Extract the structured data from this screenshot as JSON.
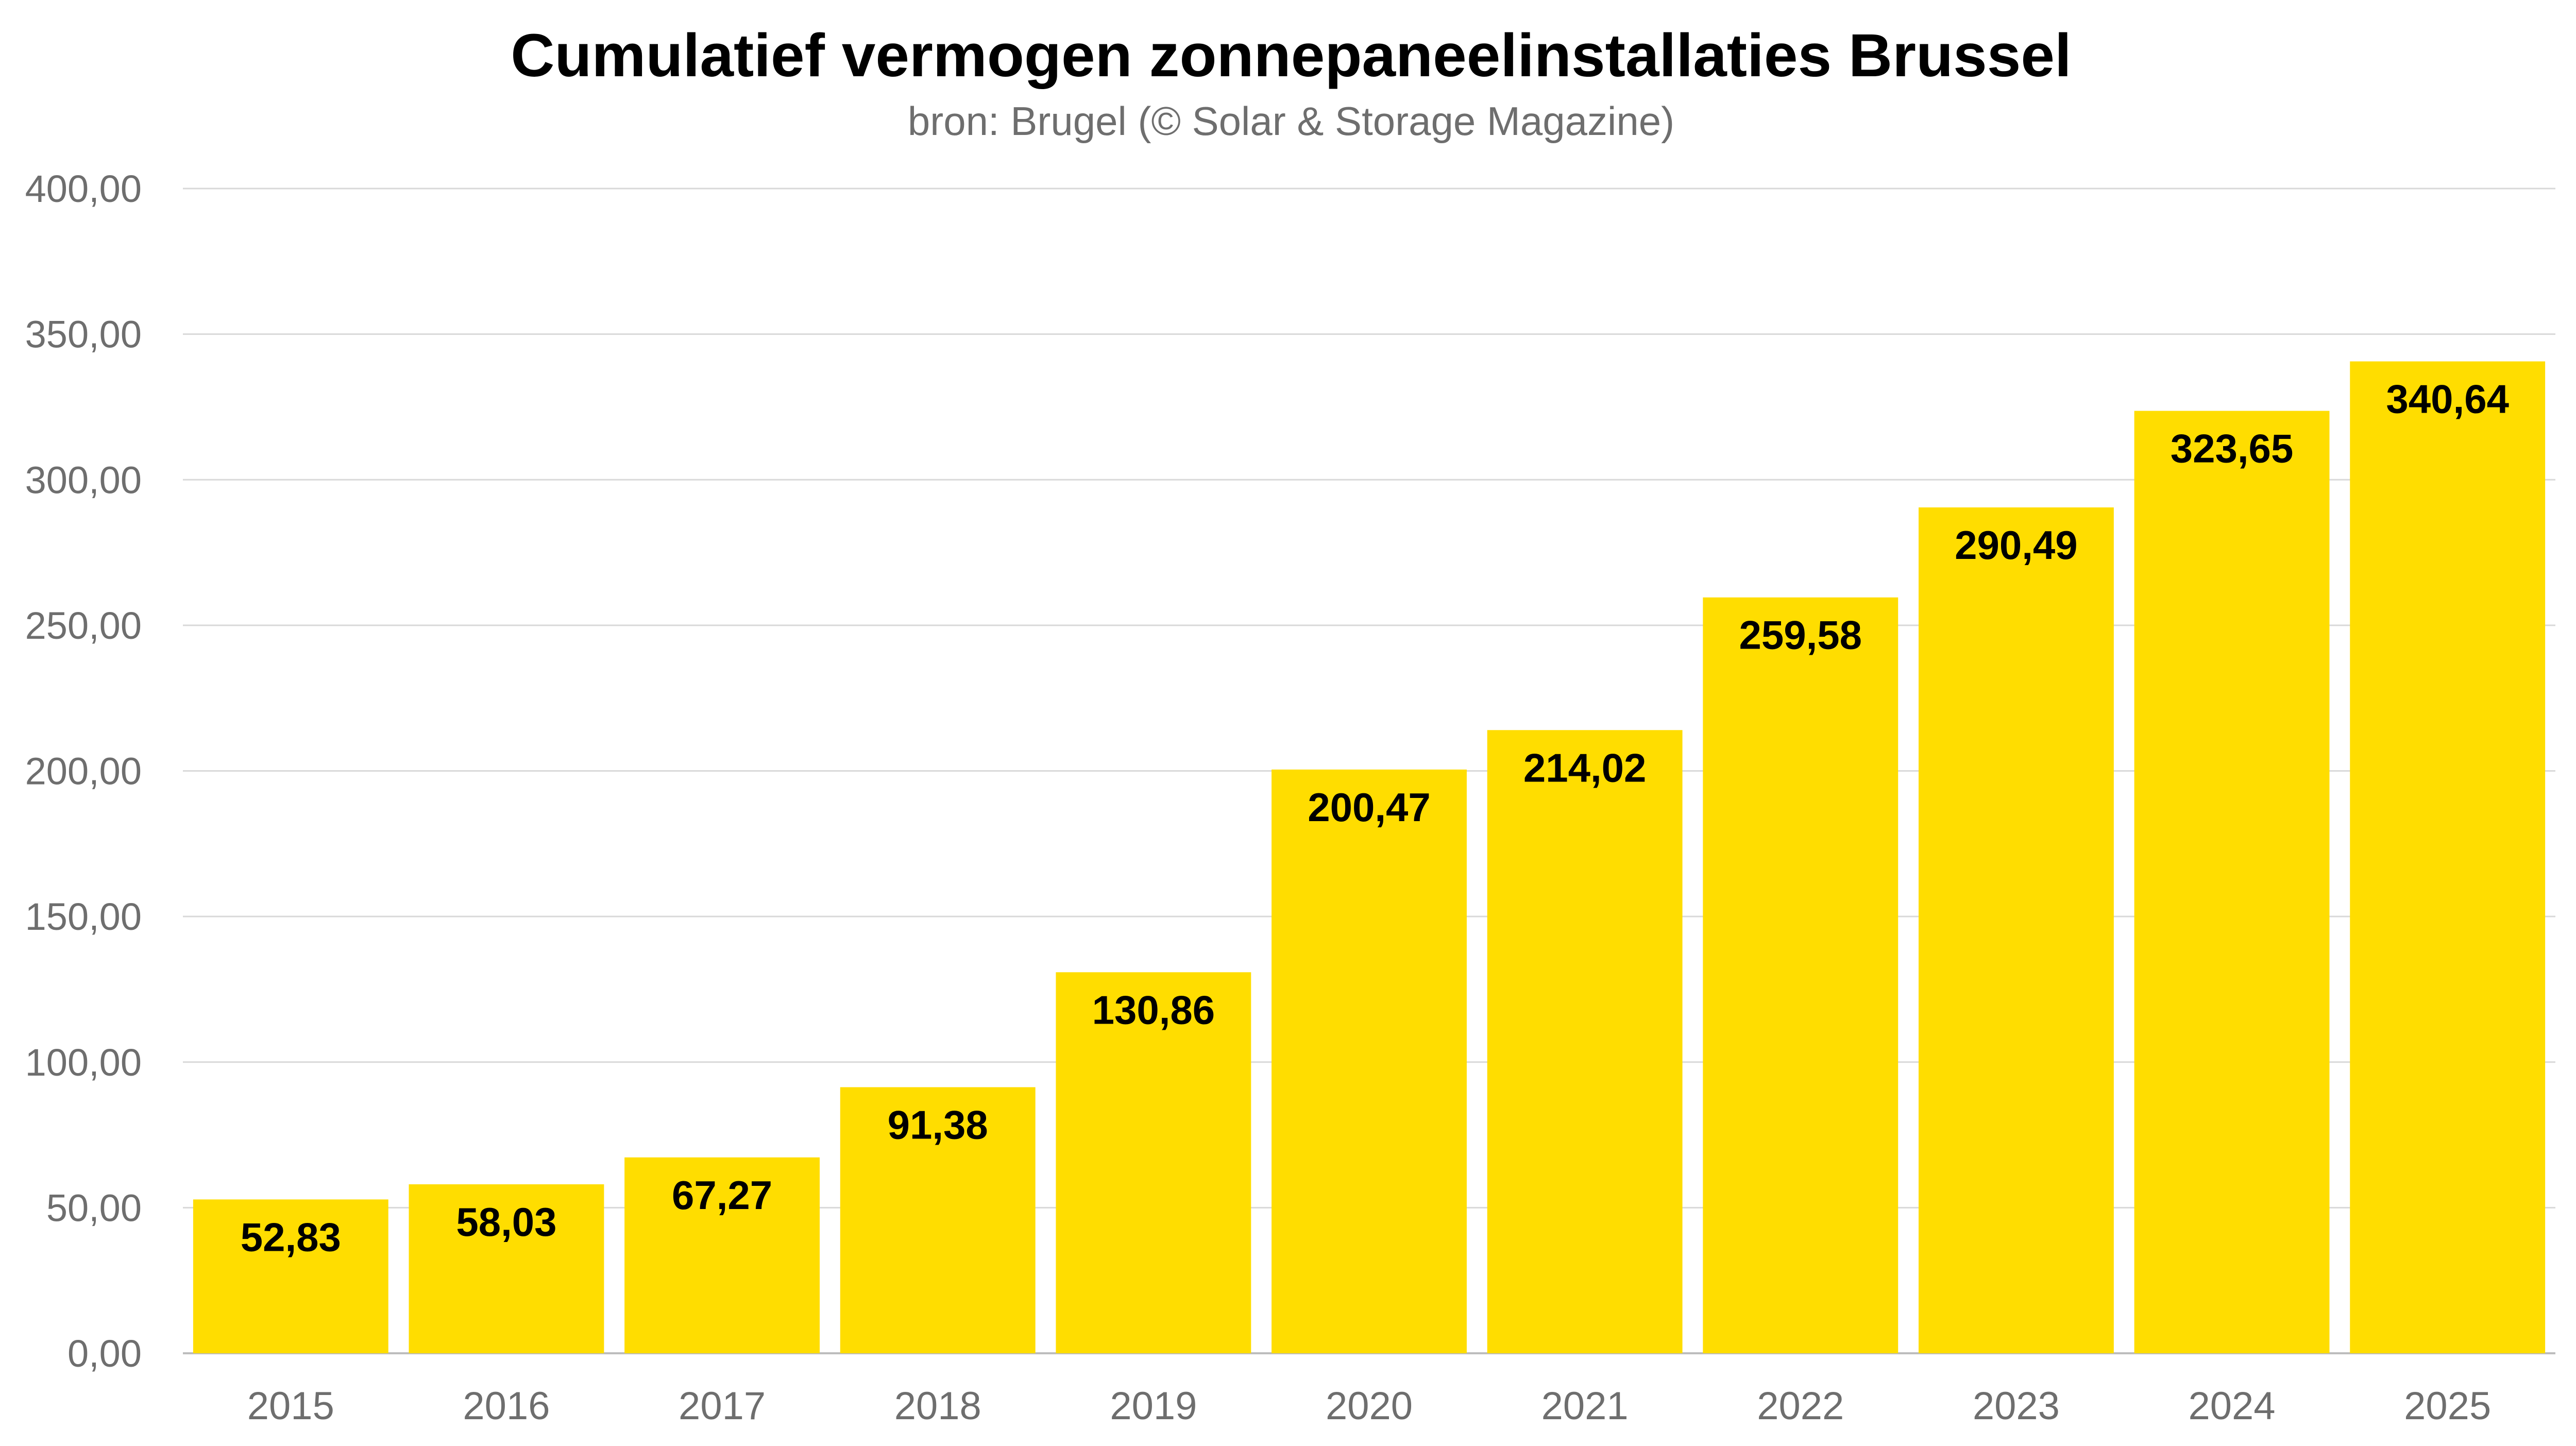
{
  "chart_data": {
    "type": "bar",
    "title": "Cumulatief vermogen zonnepaneelinstallaties Brussel",
    "subtitle": "bron: Brugel (© Solar & Storage Magazine)",
    "xlabel": "",
    "ylabel": "",
    "categories": [
      "2015",
      "2016",
      "2017",
      "2018",
      "2019",
      "2020",
      "2021",
      "2022",
      "2023",
      "2024",
      "2025"
    ],
    "values": [
      52.83,
      58.03,
      67.27,
      91.38,
      130.86,
      200.47,
      214.02,
      259.58,
      290.49,
      323.65,
      340.64
    ],
    "value_labels": [
      "52,83",
      "58,03",
      "67,27",
      "91,38",
      "130,86",
      "200,47",
      "214,02",
      "259,58",
      "290,49",
      "323,65",
      "340,64"
    ],
    "ylim": [
      0,
      400
    ],
    "yticks": [
      0,
      50,
      100,
      150,
      200,
      250,
      300,
      350,
      400
    ],
    "ytick_labels": [
      "0,00",
      "50,00",
      "100,00",
      "150,00",
      "200,00",
      "250,00",
      "300,00",
      "350,00",
      "400,00"
    ],
    "grid": true,
    "legend": "none",
    "bar_color": "#FFDD00"
  }
}
